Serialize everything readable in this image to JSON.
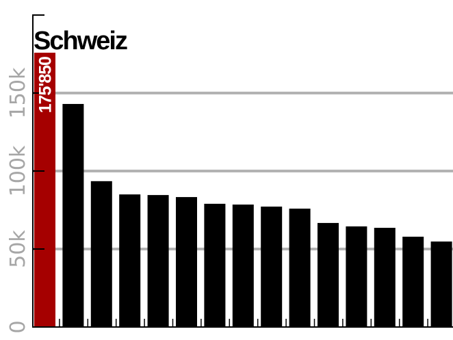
{
  "chart_data": {
    "type": "bar",
    "title": "",
    "highlight_label": "Schweiz",
    "highlight_value_label": "175'850",
    "values": [
      175850,
      143000,
      93500,
      85000,
      84600,
      83300,
      79000,
      78500,
      77200,
      75900,
      66700,
      64500,
      63600,
      57900,
      54800
    ],
    "highlight_index": 0,
    "ylim": [
      0,
      200000
    ],
    "yticks": [
      0,
      50000,
      100000,
      150000,
      200000
    ],
    "ytick_labels": [
      "0",
      "50k",
      "100k",
      "150k",
      ""
    ],
    "grid": true,
    "colors": {
      "highlight": "#a50000",
      "bars": "#000000",
      "grid": "#b3b3b3",
      "axis_labels": "#a6a6a6"
    }
  }
}
